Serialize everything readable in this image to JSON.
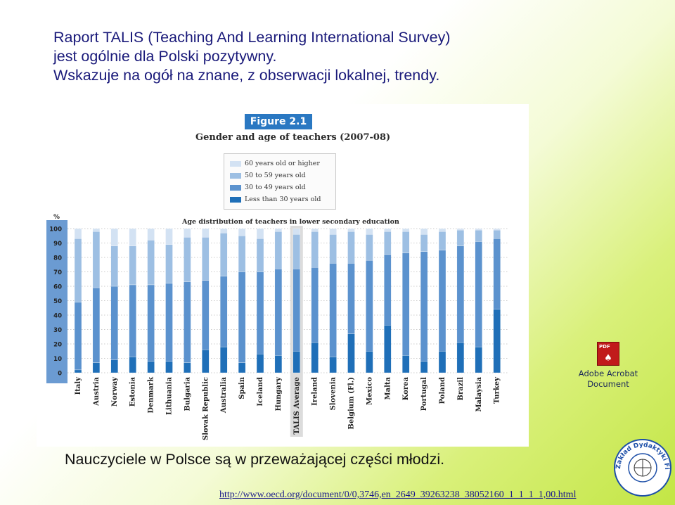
{
  "intro": {
    "line1": "Raport TALIS (Teaching And Learning International Survey)",
    "line2": "jest ogólnie dla Polski pozytywny.",
    "line3": "Wskazuje na ogół na znane, z obserwacji lokalnej, trendy."
  },
  "figure": {
    "badge": "Figure 2.1",
    "title": "Gender and age of teachers (2007-08)"
  },
  "attachment": {
    "label_line1": "Adobe Acrobat",
    "label_line2": "Document",
    "icon": "pdf-icon",
    "icon_text": "PDF"
  },
  "conclusion": "Nauczyciele w Polsce są w przeważającej części młodzi.",
  "url": "http://www.oecd.org/document/0/0,3746,en_2649_39263238_38052160_1_1_1_1,00.html",
  "stamp": {
    "icon": "department-seal-icon",
    "text": "Zakład Dydaktyki Fizyki"
  },
  "chart_data": {
    "type": "bar",
    "stacked": true,
    "title": "Age distribution of teachers in lower secondary education",
    "ylabel": "%",
    "ylim": [
      0,
      100
    ],
    "yticks": [
      0,
      10,
      20,
      30,
      40,
      50,
      60,
      70,
      80,
      90,
      100
    ],
    "legend_position": "top-center",
    "highlight_category": "TALIS Average",
    "categories": [
      "Italy",
      "Austria",
      "Norway",
      "Estonia",
      "Denmark",
      "Lithuania",
      "Bulgaria",
      "Slovak Republic",
      "Australia",
      "Spain",
      "Iceland",
      "Hungary",
      "TALIS Average",
      "Ireland",
      "Slovenia",
      "Belgium (Fl.)",
      "Mexico",
      "Malta",
      "Korea",
      "Portugal",
      "Poland",
      "Brazil",
      "Malaysia",
      "Turkey"
    ],
    "series": [
      {
        "name": "Less than 30 years old",
        "color": "#1f6fb8",
        "values": [
          2,
          7,
          9,
          11,
          8,
          8,
          7,
          16,
          18,
          7,
          13,
          12,
          15,
          21,
          11,
          27,
          15,
          33,
          12,
          8,
          15,
          21,
          18,
          44
        ]
      },
      {
        "name": "30 to 49 years old",
        "color": "#5b92ce",
        "values": [
          47,
          52,
          51,
          50,
          53,
          54,
          56,
          48,
          49,
          63,
          57,
          60,
          57,
          52,
          65,
          49,
          63,
          49,
          71,
          76,
          70,
          67,
          73,
          49
        ]
      },
      {
        "name": "50 to 59 years old",
        "color": "#9dbfe3",
        "values": [
          44,
          39,
          28,
          27,
          31,
          27,
          31,
          30,
          30,
          25,
          23,
          26,
          24,
          25,
          20,
          22,
          18,
          16,
          15,
          12,
          13,
          11,
          8,
          6
        ]
      },
      {
        "name": "60 years old or higher",
        "color": "#d3e2f3",
        "values": [
          7,
          2,
          12,
          12,
          8,
          11,
          6,
          6,
          3,
          5,
          7,
          2,
          4,
          2,
          4,
          2,
          4,
          2,
          2,
          4,
          2,
          1,
          1,
          1
        ]
      }
    ]
  }
}
